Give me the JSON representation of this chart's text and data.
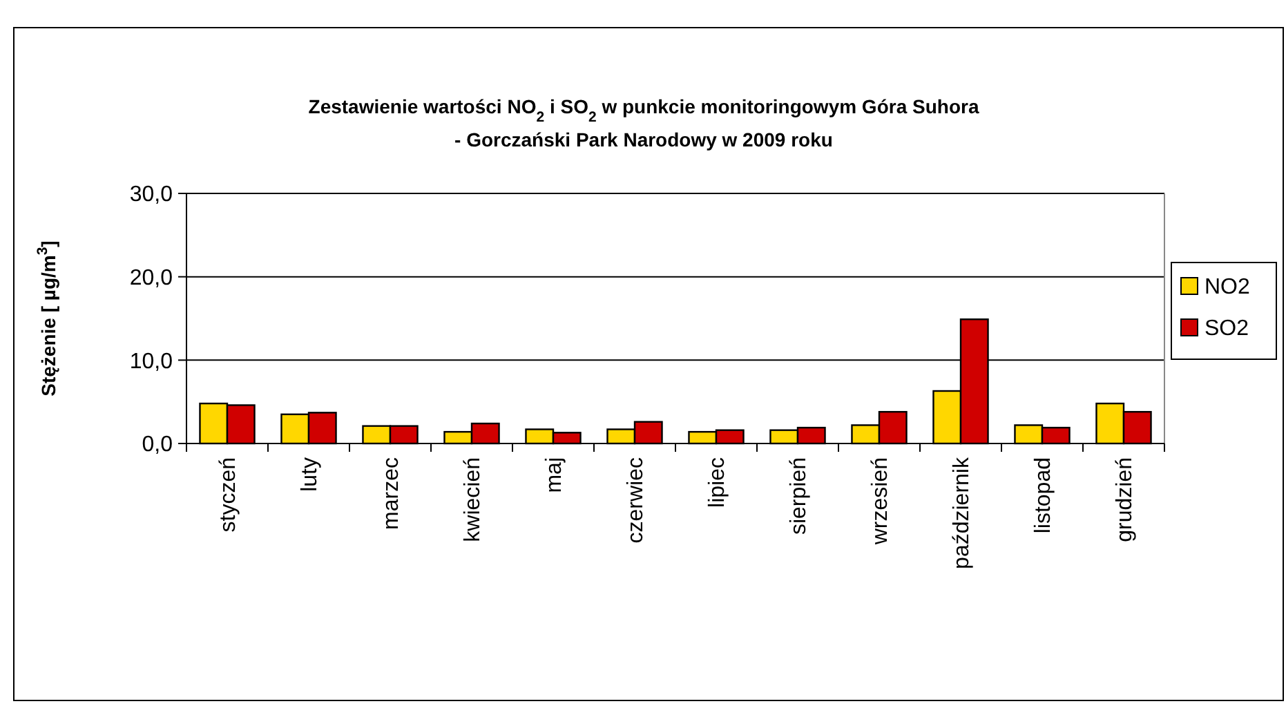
{
  "chart_data": {
    "type": "bar",
    "title": "Zestawienie wartości NO$_{2}$ i SO$_{2}$ w punkcie monitoringowym Góra Suhora",
    "subtitle": "- Gorczański Park Narodowy w 2009 roku",
    "ylabel": "Stężenie [  µg/m$^{3}$]",
    "categories": [
      "styczeń",
      "luty",
      "marzec",
      "kwiecień",
      "maj",
      "czerwiec",
      "lipiec",
      "sierpień",
      "wrzesień",
      "październik",
      "listopad",
      "grudzień"
    ],
    "series": [
      {
        "name": "NO2",
        "color": "#ffd700",
        "values": [
          4.8,
          3.5,
          2.1,
          1.4,
          1.7,
          1.7,
          1.4,
          1.6,
          2.2,
          6.3,
          2.2,
          4.8
        ]
      },
      {
        "name": "SO2",
        "color": "#d00000",
        "values": [
          4.6,
          3.7,
          2.1,
          2.4,
          1.3,
          2.6,
          1.6,
          1.9,
          3.8,
          14.9,
          1.9,
          3.8
        ]
      }
    ],
    "ylim": [
      0,
      30
    ],
    "yticks": [
      {
        "value": 0,
        "label": "0,0"
      },
      {
        "value": 10,
        "label": "10,0"
      },
      {
        "value": 20,
        "label": "20,0"
      },
      {
        "value": 30,
        "label": "30,0"
      }
    ],
    "grid": "y",
    "legend": "right"
  }
}
